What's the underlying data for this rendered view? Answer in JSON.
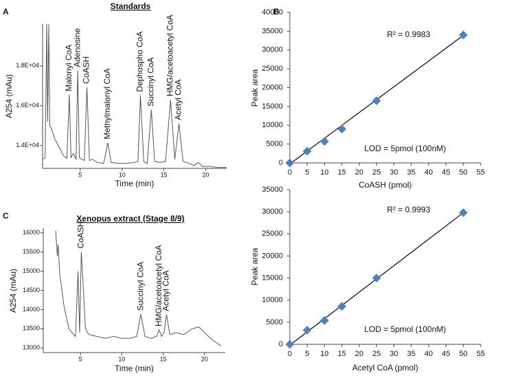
{
  "chart_data": [
    {
      "type": "line",
      "label": "A",
      "title": "Standards",
      "xlabel": "Time (min)",
      "ylabel": "A254 (mAu)",
      "color": "#555555",
      "x": [
        0.5,
        0.8,
        1.0,
        1.1,
        1.25,
        1.35,
        1.5,
        2.0,
        2.5,
        3.0,
        3.4,
        3.7,
        3.9,
        4.2,
        4.5,
        4.7,
        4.9,
        5.2,
        5.5,
        5.8,
        6.1,
        6.5,
        7.0,
        7.8,
        8.3,
        8.7,
        9.5,
        10.5,
        11.5,
        11.9,
        12.2,
        12.6,
        13.0,
        13.5,
        13.9,
        14.5,
        15.2,
        15.8,
        16.3,
        16.8,
        17.3,
        18.0,
        18.6,
        19.1,
        19.6,
        20.5,
        21.5,
        22.5
      ],
      "values": [
        13300,
        13400,
        20100,
        15200,
        20100,
        15000,
        14900,
        14300,
        13900,
        13500,
        13350,
        16550,
        13400,
        13600,
        13300,
        17760,
        13400,
        13300,
        13250,
        16930,
        13250,
        13300,
        13150,
        13100,
        14140,
        13150,
        13100,
        13100,
        13150,
        13200,
        16520,
        13200,
        13100,
        15790,
        13200,
        13150,
        13200,
        16300,
        13300,
        15100,
        13200,
        13100,
        12980,
        13150,
        12950,
        12950,
        12900,
        12900
      ],
      "xlim": [
        0.5,
        22.5
      ],
      "xticks": [
        5,
        10,
        15,
        20
      ],
      "ylim": [
        12850,
        20100
      ],
      "yticks": [
        {
          "value": 14000,
          "label": "1.4E+04"
        },
        {
          "value": 16000,
          "label": "1.6E+04"
        },
        {
          "value": 18000,
          "label": "1.8E+04"
        }
      ],
      "annotations": [
        {
          "text": "Malonyl CoA",
          "x": 3.7
        },
        {
          "text": "Adenosine",
          "x": 4.7
        },
        {
          "text": "CoASH",
          "x": 5.8
        },
        {
          "text": "Methylmalonyl CoA",
          "x": 8.3
        },
        {
          "text": "Dephospho CoA",
          "x": 12.2
        },
        {
          "text": "Succinyl CoA",
          "x": 13.5
        },
        {
          "text": "HMG/acetoacetyl CoA",
          "x": 15.8
        },
        {
          "text": "Acetyl CoA",
          "x": 16.8
        }
      ]
    },
    {
      "type": "scatter",
      "label": "B",
      "xlabel": "CoASH (pmol)",
      "ylabel": "Peak area",
      "color": "#4f81bd",
      "fit_color": "#000000",
      "x": [
        0,
        5,
        10,
        15,
        25,
        50
      ],
      "values": [
        0,
        3100,
        5700,
        9000,
        16500,
        34000
      ],
      "fit": {
        "x": [
          0,
          50
        ],
        "values": [
          -300,
          33900
        ]
      },
      "xlim": [
        0,
        55
      ],
      "xticks": [
        0,
        5,
        10,
        15,
        20,
        25,
        30,
        35,
        40,
        45,
        50,
        55
      ],
      "ylim": [
        0,
        40000
      ],
      "yticks": [
        0,
        5000,
        10000,
        15000,
        20000,
        25000,
        30000,
        35000,
        40000
      ],
      "annotations": [
        "R² = 0.9983",
        "LOD = 5pmol (100nM)"
      ]
    },
    {
      "type": "line",
      "label": "C",
      "title": "Xenopus extract (Stage 8/9)",
      "xlabel": "Time (min)",
      "ylabel": "A254 (mAu)",
      "color": "#555555",
      "x": [
        2.0,
        2.2,
        2.3,
        2.5,
        2.7,
        3.0,
        3.3,
        3.6,
        4.0,
        4.4,
        4.7,
        4.9,
        5.1,
        5.3,
        5.6,
        6.0,
        7.0,
        8.0,
        9.0,
        10.0,
        11.0,
        11.8,
        12.3,
        12.8,
        13.5,
        14.2,
        14.5,
        14.8,
        15.1,
        15.4,
        15.8,
        16.5,
        17.5,
        18.5,
        19.3,
        20.0,
        21.0,
        22.0
      ],
      "values": [
        16050,
        15400,
        15700,
        14900,
        14600,
        14100,
        13800,
        13500,
        13400,
        13300,
        15000,
        13400,
        15500,
        14750,
        13500,
        13350,
        13300,
        13250,
        13300,
        13250,
        13250,
        13300,
        13880,
        13300,
        13250,
        13300,
        13470,
        13300,
        13400,
        13870,
        13350,
        13400,
        13350,
        13500,
        13550,
        13400,
        13200,
        13050
      ],
      "xlim": [
        0.5,
        22.5
      ],
      "xticks": [
        5,
        10,
        15,
        20
      ],
      "ylim": [
        12880,
        16120
      ],
      "yticks": [
        13000,
        13500,
        14000,
        14500,
        15000,
        15500,
        16000
      ],
      "annotations": [
        {
          "text": "CoASH",
          "x": 5.1
        },
        {
          "text": "Succinyl CoA",
          "x": 12.3
        },
        {
          "text": "HMG/acetoacetyl CoA",
          "x": 14.5
        },
        {
          "text": "Acetyl CoA",
          "x": 15.4
        }
      ]
    },
    {
      "type": "scatter",
      "xlabel": "Acetyl CoA (pmol)",
      "ylabel": "Peak area",
      "color": "#4f81bd",
      "fit_color": "#000000",
      "x": [
        0,
        5,
        10,
        15,
        25,
        50
      ],
      "values": [
        0,
        3200,
        5400,
        8600,
        15000,
        29800
      ],
      "fit": {
        "x": [
          0,
          50
        ],
        "values": [
          -200,
          29800
        ]
      },
      "xlim": [
        0,
        55
      ],
      "xticks": [
        0,
        5,
        10,
        15,
        20,
        25,
        30,
        35,
        40,
        45,
        50,
        55
      ],
      "ylim": [
        0,
        35000
      ],
      "yticks": [
        0,
        5000,
        10000,
        15000,
        20000,
        25000,
        30000,
        35000
      ],
      "annotations": [
        "R² = 0.9993",
        "LOD = 5pmol (100nM)"
      ]
    }
  ]
}
